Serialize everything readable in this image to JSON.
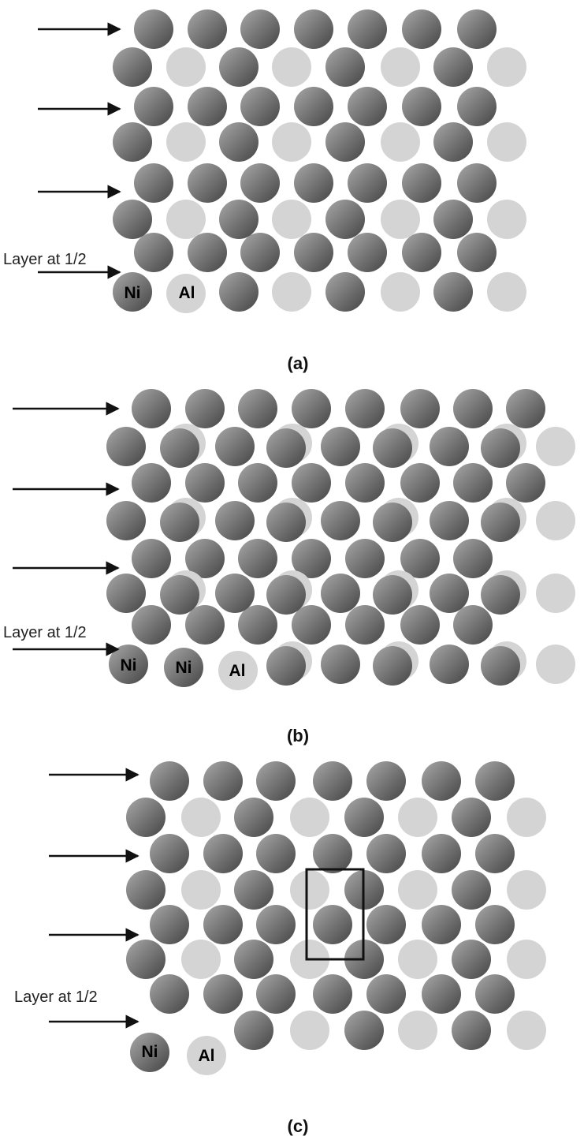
{
  "legend": {
    "ni": "Ni",
    "al": "Al"
  },
  "layer_label": "Layer at 1/2",
  "panels": [
    {
      "caption": "(a)"
    },
    {
      "caption": "(b)"
    },
    {
      "caption": "(c)"
    }
  ],
  "colors": {
    "ni_light": "#9a9a9a",
    "ni_dark": "#4a4a4a",
    "al": "#d4d4d4",
    "arrow": "#111111",
    "box": "#111111"
  }
}
